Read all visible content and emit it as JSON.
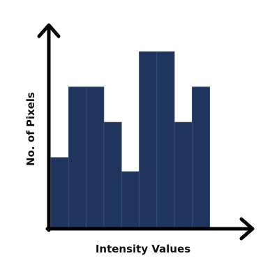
{
  "chart_data": {
    "type": "bar",
    "title": "",
    "xlabel": "Intensity Values",
    "ylabel": "No. of Pixels",
    "categories": [
      "",
      "",
      "",
      "",
      "",
      "",
      "",
      "",
      "",
      ""
    ],
    "values": [
      2,
      4,
      4,
      3,
      1.6,
      5,
      5,
      3,
      4,
      0
    ],
    "ylim": [
      0,
      5
    ],
    "grid": false,
    "legend": "none",
    "colors": {
      "bar": "#1F355E",
      "bar_edge": "#3E5478",
      "axis": "#000000"
    }
  }
}
